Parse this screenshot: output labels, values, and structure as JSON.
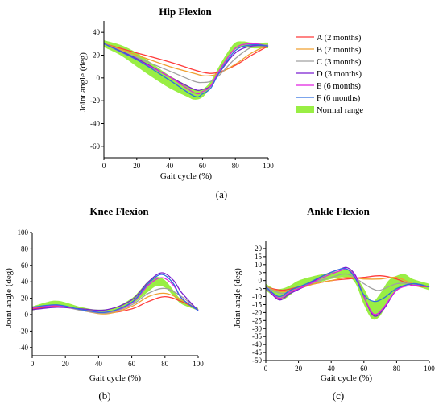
{
  "chart_data": [
    {
      "id": "hip",
      "type": "line",
      "title": "Hip Flexion",
      "panel_label": "(a)",
      "xlabel": "Gait cycle (%)",
      "ylabel": "Joint angle (deg)",
      "xlim": [
        0,
        100
      ],
      "ylim": [
        -70,
        50
      ],
      "xticks": [
        0,
        20,
        40,
        60,
        80,
        100
      ],
      "yticks": [
        -60,
        -40,
        -20,
        0,
        20,
        40
      ],
      "normal_range": {
        "x": [
          0,
          10,
          20,
          30,
          40,
          50,
          55,
          60,
          65,
          70,
          75,
          80,
          85,
          90,
          100
        ],
        "lower": [
          27,
          20,
          10,
          0,
          -9,
          -16,
          -19,
          -17,
          -8,
          4,
          16,
          25,
          27,
          26,
          26
        ],
        "upper": [
          33,
          29,
          22,
          12,
          2,
          -6,
          -10,
          -10,
          -3,
          10,
          22,
          31,
          32,
          31,
          31
        ]
      },
      "series": [
        {
          "name": "A (2 months)",
          "color": "#ff3b3b",
          "x": [
            0,
            20,
            40,
            55,
            60,
            65,
            70,
            80,
            90,
            100
          ],
          "y": [
            30,
            22,
            14,
            7,
            5,
            4,
            5,
            11,
            20,
            28
          ]
        },
        {
          "name": "B (2 months)",
          "color": "#f0a030",
          "x": [
            0,
            20,
            40,
            55,
            60,
            65,
            70,
            80,
            90,
            100
          ],
          "y": [
            30,
            20,
            10,
            4,
            2,
            2,
            4,
            12,
            22,
            29
          ]
        },
        {
          "name": "C (3 months)",
          "color": "#a0a0a0",
          "x": [
            0,
            20,
            40,
            55,
            60,
            65,
            70,
            80,
            90,
            100
          ],
          "y": [
            30,
            18,
            6,
            -3,
            -4,
            -3,
            2,
            17,
            27,
            29
          ]
        },
        {
          "name": "D (3 months)",
          "color": "#7a1fd0",
          "x": [
            0,
            20,
            40,
            55,
            60,
            65,
            70,
            80,
            90,
            100
          ],
          "y": [
            30,
            17,
            1,
            -10,
            -10,
            -7,
            4,
            22,
            28,
            28
          ]
        },
        {
          "name": "E (6 months)",
          "color": "#e020e0",
          "x": [
            0,
            20,
            40,
            55,
            60,
            65,
            70,
            80,
            90,
            100
          ],
          "y": [
            30,
            16,
            1,
            -13,
            -12,
            -7,
            6,
            26,
            30,
            28
          ]
        },
        {
          "name": "F (6 months)",
          "color": "#2f6fe0",
          "x": [
            0,
            20,
            40,
            55,
            60,
            65,
            70,
            80,
            90,
            100
          ],
          "y": [
            30,
            16,
            -2,
            -16,
            -14,
            -9,
            4,
            24,
            29,
            28
          ]
        }
      ],
      "legend": {
        "placement": "right",
        "normal_range_label": "Normal range",
        "normal_range_color": "#99ee44"
      }
    },
    {
      "id": "knee",
      "type": "line",
      "title": "Knee Flexion",
      "panel_label": "(b)",
      "xlabel": "Gait cycle (%)",
      "ylabel": "Joint angle (deg)",
      "xlim": [
        0,
        100
      ],
      "ylim": [
        -50,
        100
      ],
      "xticks": [
        0,
        20,
        40,
        60,
        80,
        100
      ],
      "yticks": [
        -40,
        -20,
        0,
        20,
        40,
        60,
        80,
        100
      ],
      "normal_range": {
        "x": [
          0,
          10,
          15,
          20,
          30,
          40,
          50,
          60,
          65,
          70,
          75,
          80,
          85,
          90,
          100
        ],
        "lower": [
          5,
          10,
          11,
          10,
          5,
          3,
          5,
          13,
          20,
          28,
          35,
          33,
          23,
          13,
          5
        ],
        "upper": [
          10,
          16,
          17,
          15,
          9,
          6,
          9,
          20,
          30,
          41,
          46,
          42,
          30,
          18,
          8
        ]
      },
      "series": [
        {
          "name": "A (2 months)",
          "color": "#ff3b3b",
          "x": [
            0,
            15,
            30,
            45,
            60,
            70,
            80,
            90,
            100
          ],
          "y": [
            7,
            10,
            6,
            2,
            7,
            16,
            22,
            16,
            6
          ]
        },
        {
          "name": "B (2 months)",
          "color": "#f0a030",
          "x": [
            0,
            15,
            30,
            45,
            60,
            70,
            80,
            90,
            100
          ],
          "y": [
            8,
            11,
            5,
            1,
            10,
            22,
            26,
            18,
            6
          ]
        },
        {
          "name": "C (3 months)",
          "color": "#a0a0a0",
          "x": [
            0,
            15,
            30,
            45,
            60,
            70,
            80,
            90,
            100
          ],
          "y": [
            8,
            11,
            5,
            2,
            12,
            26,
            32,
            22,
            6
          ]
        },
        {
          "name": "D (3 months)",
          "color": "#7a1fd0",
          "x": [
            0,
            15,
            30,
            45,
            60,
            70,
            78,
            85,
            90,
            100
          ],
          "y": [
            6,
            9,
            7,
            6,
            18,
            40,
            51,
            42,
            27,
            5
          ]
        },
        {
          "name": "E (6 months)",
          "color": "#e020e0",
          "x": [
            0,
            15,
            30,
            45,
            60,
            70,
            78,
            85,
            90,
            100
          ],
          "y": [
            8,
            11,
            6,
            3,
            14,
            36,
            45,
            36,
            20,
            5
          ]
        },
        {
          "name": "F (6 months)",
          "color": "#2f6fe0",
          "x": [
            0,
            15,
            30,
            45,
            60,
            70,
            78,
            85,
            90,
            100
          ],
          "y": [
            9,
            12,
            6,
            3,
            15,
            38,
            49,
            38,
            20,
            5
          ]
        }
      ]
    },
    {
      "id": "ankle",
      "type": "line",
      "title": "Ankle Flexion",
      "panel_label": "(c)",
      "xlabel": "Gait cycle (%)",
      "ylabel": "Joint angle (deg)",
      "xlim": [
        0,
        100
      ],
      "ylim": [
        -50,
        25
      ],
      "xticks": [
        0,
        20,
        40,
        60,
        80,
        100
      ],
      "yticks": [
        -50,
        -45,
        -40,
        -35,
        -30,
        -25,
        -20,
        -15,
        -10,
        -5,
        0,
        5,
        10,
        15,
        20
      ],
      "normal_range": {
        "x": [
          0,
          5,
          10,
          15,
          20,
          30,
          40,
          50,
          55,
          60,
          65,
          70,
          75,
          80,
          85,
          90,
          100
        ],
        "lower": [
          -6,
          -10,
          -12,
          -9,
          -5,
          -2,
          1,
          2,
          -2,
          -15,
          -24,
          -22,
          -12,
          -6,
          -3,
          -3,
          -6
        ],
        "upper": [
          -2,
          -5,
          -5,
          -3,
          0,
          3,
          5,
          7,
          3,
          -5,
          -13,
          -8,
          0,
          3,
          4,
          1,
          -2
        ]
      },
      "series": [
        {
          "name": "A (2 months)",
          "color": "#ff3b3b",
          "x": [
            0,
            10,
            20,
            30,
            40,
            50,
            60,
            70,
            80,
            90,
            100
          ],
          "y": [
            -4,
            -6,
            -4,
            -2,
            0,
            1,
            2,
            3,
            1,
            -3,
            -4
          ]
        },
        {
          "name": "B (2 months)",
          "color": "#f0a030",
          "x": [
            0,
            10,
            20,
            30,
            40,
            50,
            60,
            70,
            80,
            90,
            100
          ],
          "y": [
            -4,
            -7,
            -5,
            -2,
            0,
            2,
            1,
            1,
            2,
            -2,
            -4
          ]
        },
        {
          "name": "C (3 months)",
          "color": "#a0a0a0",
          "x": [
            0,
            10,
            20,
            30,
            40,
            50,
            60,
            65,
            70,
            80,
            90,
            100
          ],
          "y": [
            -4,
            -8,
            -5,
            -1,
            2,
            4,
            -2,
            -5,
            -6,
            -2,
            -2,
            -4
          ]
        },
        {
          "name": "D (3 months)",
          "color": "#7a1fd0",
          "x": [
            0,
            8,
            15,
            25,
            35,
            45,
            50,
            55,
            60,
            66,
            72,
            80,
            90,
            100
          ],
          "y": [
            -4,
            -12,
            -8,
            -3,
            3,
            7,
            8,
            3,
            -10,
            -22,
            -18,
            -6,
            -2,
            -4
          ]
        },
        {
          "name": "E (6 months)",
          "color": "#e020e0",
          "x": [
            0,
            8,
            15,
            25,
            35,
            45,
            50,
            55,
            60,
            66,
            72,
            80,
            90,
            100
          ],
          "y": [
            -4,
            -11,
            -7,
            -3,
            2,
            6,
            7,
            2,
            -10,
            -21,
            -17,
            -6,
            -3,
            -4
          ]
        },
        {
          "name": "F (6 months)",
          "color": "#2f6fe0",
          "x": [
            0,
            8,
            15,
            25,
            35,
            45,
            50,
            55,
            60,
            66,
            72,
            80,
            90,
            100
          ],
          "y": [
            -4,
            -10,
            -6,
            -2,
            3,
            7,
            7,
            1,
            -9,
            -13,
            -11,
            -5,
            -2,
            -4
          ]
        }
      ]
    }
  ]
}
